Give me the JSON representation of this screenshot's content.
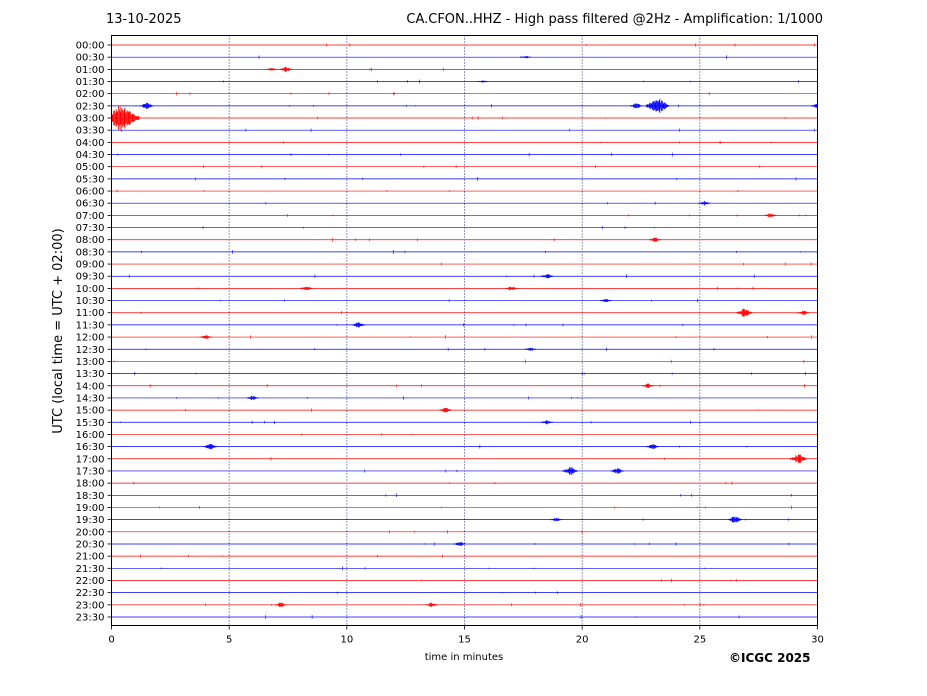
{
  "header": {
    "date": "13-10-2025",
    "title": "CA.CFON..HHZ - High pass filtered @2Hz - Amplification: 1/1000"
  },
  "footer": {
    "copyright": "©ICGC 2025"
  },
  "colors": {
    "trace_even": "#ff0000",
    "trace_odd": "#0000ff",
    "grid": "#00006e",
    "axes": "#000000"
  },
  "chart_data": {
    "type": "line",
    "title": "CA.CFON..HHZ - High pass filtered @2Hz - Amplification: 1/1000",
    "xlabel": "time in minutes",
    "ylabel": "UTC (local time = UTC + 02:00)",
    "xlim": [
      0,
      30
    ],
    "xticks": [
      0,
      5,
      10,
      15,
      20,
      25,
      30
    ],
    "xtick_labels": [
      "0",
      "5",
      "10",
      "15",
      "20",
      "25",
      "30"
    ],
    "grid": "vertical dotted lines at each x tick",
    "row_labels": [
      "00:00",
      "00:30",
      "01:00",
      "01:30",
      "02:00",
      "02:30",
      "03:00",
      "03:30",
      "04:00",
      "04:30",
      "05:00",
      "05:30",
      "06:00",
      "06:30",
      "07:00",
      "07:30",
      "08:00",
      "08:30",
      "09:00",
      "09:30",
      "10:00",
      "10:30",
      "11:00",
      "11:30",
      "12:00",
      "12:30",
      "13:00",
      "13:30",
      "14:00",
      "14:30",
      "15:00",
      "15:30",
      "16:00",
      "16:30",
      "17:00",
      "17:30",
      "18:00",
      "18:30",
      "19:00",
      "19:30",
      "20:00",
      "20:30",
      "21:00",
      "21:30",
      "22:00",
      "22:30",
      "23:00",
      "23:30"
    ],
    "series_colors": "alternating red (even rows) and blue (odd rows)",
    "events": [
      {
        "row": "00:30",
        "minute": 17.6,
        "amp": 0.2
      },
      {
        "row": "01:00",
        "minute": 7.4,
        "amp": 0.35
      },
      {
        "row": "01:00",
        "minute": 6.8,
        "amp": 0.2
      },
      {
        "row": "01:30",
        "minute": 15.8,
        "amp": 0.15
      },
      {
        "row": "02:30",
        "minute": 1.5,
        "amp": 0.4
      },
      {
        "row": "02:30",
        "minute": 23.2,
        "amp": 1.0
      },
      {
        "row": "02:30",
        "minute": 22.3,
        "amp": 0.35
      },
      {
        "row": "02:30",
        "minute": 30.0,
        "amp": 0.35
      },
      {
        "row": "03:00",
        "minute": 0.4,
        "amp": 1.8
      },
      {
        "row": "06:30",
        "minute": 25.2,
        "amp": 0.3
      },
      {
        "row": "07:00",
        "minute": 28.0,
        "amp": 0.3
      },
      {
        "row": "08:00",
        "minute": 23.1,
        "amp": 0.3
      },
      {
        "row": "09:30",
        "minute": 18.5,
        "amp": 0.35
      },
      {
        "row": "10:00",
        "minute": 17.0,
        "amp": 0.3
      },
      {
        "row": "10:00",
        "minute": 8.3,
        "amp": 0.3
      },
      {
        "row": "10:30",
        "minute": 21.0,
        "amp": 0.25
      },
      {
        "row": "11:00",
        "minute": 26.9,
        "amp": 0.55
      },
      {
        "row": "11:00",
        "minute": 29.4,
        "amp": 0.3
      },
      {
        "row": "11:30",
        "minute": 10.5,
        "amp": 0.4
      },
      {
        "row": "12:00",
        "minute": 4.0,
        "amp": 0.25
      },
      {
        "row": "12:30",
        "minute": 17.8,
        "amp": 0.25
      },
      {
        "row": "14:00",
        "minute": 22.8,
        "amp": 0.3
      },
      {
        "row": "14:30",
        "minute": 6.0,
        "amp": 0.3
      },
      {
        "row": "15:00",
        "minute": 14.2,
        "amp": 0.35
      },
      {
        "row": "15:30",
        "minute": 18.5,
        "amp": 0.3
      },
      {
        "row": "16:30",
        "minute": 4.2,
        "amp": 0.4
      },
      {
        "row": "16:30",
        "minute": 23.0,
        "amp": 0.35
      },
      {
        "row": "17:00",
        "minute": 29.2,
        "amp": 0.6
      },
      {
        "row": "17:30",
        "minute": 19.5,
        "amp": 0.55
      },
      {
        "row": "17:30",
        "minute": 21.5,
        "amp": 0.4
      },
      {
        "row": "19:30",
        "minute": 26.5,
        "amp": 0.45
      },
      {
        "row": "19:30",
        "minute": 18.9,
        "amp": 0.25
      },
      {
        "row": "20:30",
        "minute": 14.8,
        "amp": 0.3
      },
      {
        "row": "23:00",
        "minute": 7.2,
        "amp": 0.3
      },
      {
        "row": "23:00",
        "minute": 13.6,
        "amp": 0.3
      }
    ]
  }
}
